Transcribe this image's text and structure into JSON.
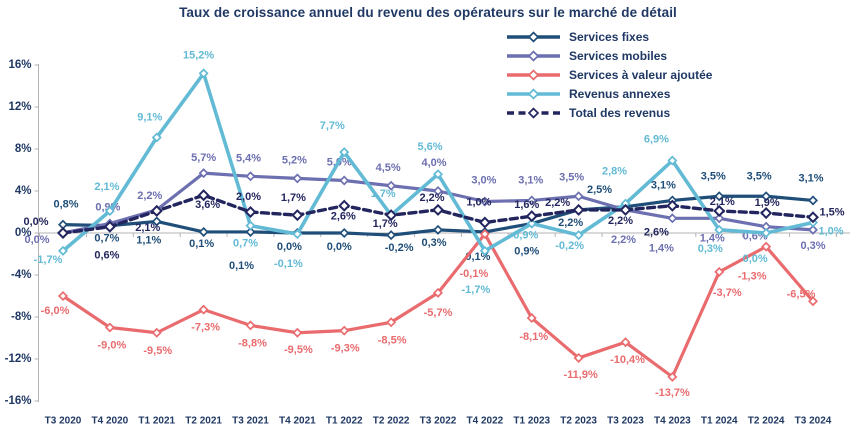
{
  "chart_data": {
    "type": "line",
    "title": "Taux de croissance annuel du revenu des opérateurs sur le marché de détail",
    "categories": [
      "T3 2020",
      "T4 2020",
      "T1 2021",
      "T2 2021",
      "T3 2021",
      "T4 2021",
      "T1 2022",
      "T2 2022",
      "T3 2022",
      "T4 2022",
      "T1 2023",
      "T2 2023",
      "T3 2023",
      "T4 2023",
      "T1 2024",
      "T2 2024",
      "T3 2024"
    ],
    "y_axis": {
      "min": -16,
      "max": 16,
      "step": 4,
      "tick_labels": [
        "16%",
        "12%",
        "8%",
        "4%",
        "0%",
        "-4%",
        "-8%",
        "-12%",
        "-16%"
      ]
    },
    "grid": false,
    "legend_position": "top-right",
    "colors": {
      "axis_text": "#1F3864",
      "axis_line": "#B3B3B3",
      "title": "#1F3864"
    },
    "series": [
      {
        "id": "services-fixes",
        "name": "Services fixes",
        "color": "#1F4E79",
        "dash": false,
        "values": [
          0.8,
          0.7,
          1.1,
          0.1,
          0.1,
          0.0,
          0.0,
          -0.2,
          0.3,
          0.1,
          0.9,
          2.2,
          2.5,
          3.1,
          3.5,
          3.5,
          3.1
        ],
        "labels": [
          "0,8%",
          "0,7%",
          "1,1%",
          "0,1%",
          "0,1%",
          "0,0%",
          "0,0%",
          "-0,2%",
          "0,3%",
          "0,1%",
          "0,9%",
          "2,2%",
          "2,5%",
          "3,1%",
          "3,5%",
          "3,5%",
          "3,1%"
        ],
        "label_offsets": [
          [
            3,
            -20
          ],
          [
            -3,
            13
          ],
          [
            -8,
            19
          ],
          [
            -2,
            12
          ],
          [
            -9,
            34
          ],
          [
            -8,
            14
          ],
          [
            -5,
            14
          ],
          [
            8,
            13
          ],
          [
            -4,
            13
          ],
          [
            -7,
            25
          ],
          [
            -5,
            28
          ],
          [
            -8,
            13
          ],
          [
            -26,
            -17
          ],
          [
            -9,
            -15
          ],
          [
            -6,
            -20
          ],
          [
            -7,
            -20
          ],
          [
            -2,
            -22
          ]
        ]
      },
      {
        "id": "services-mobiles",
        "name": "Services mobiles",
        "color": "#6C6FB0",
        "dash": false,
        "values": [
          0.0,
          0.9,
          2.2,
          5.7,
          5.4,
          5.2,
          5.0,
          4.5,
          4.0,
          3.0,
          3.1,
          3.5,
          2.2,
          1.4,
          1.4,
          0.6,
          0.3
        ],
        "labels": [
          "0,0%",
          "0,9%",
          "2,2%",
          "5,7%",
          "5,4%",
          "5,2%",
          "5,0%",
          "4,5%",
          "4,0%",
          "3,0%",
          "3,1%",
          "3,5%",
          "2,2%",
          "1,4%",
          "1,4%",
          "0,6%",
          "0,3%"
        ],
        "label_offsets": [
          [
            -26,
            7
          ],
          [
            -2,
            -16
          ],
          [
            -7,
            -14
          ],
          [
            0,
            -15
          ],
          [
            -2,
            -18
          ],
          [
            -3,
            -18
          ],
          [
            -5,
            -18
          ],
          [
            -3,
            -18
          ],
          [
            -4,
            -28
          ],
          [
            -1,
            -21
          ],
          [
            -1,
            -20
          ],
          [
            -7,
            -19
          ],
          [
            -2,
            30
          ],
          [
            -11,
            30
          ],
          [
            -7,
            20
          ],
          [
            -11,
            10
          ],
          [
            0,
            16
          ]
        ]
      },
      {
        "id": "services-valeur-ajoutee",
        "name": "Services à valeur ajoutée",
        "color": "#E96B6E",
        "dash": false,
        "values": [
          -6.0,
          -9.0,
          -9.5,
          -7.3,
          -8.8,
          -9.5,
          -9.3,
          -8.5,
          -5.7,
          -0.1,
          -8.1,
          -11.9,
          -10.4,
          -13.7,
          -3.7,
          -1.3,
          -6.5
        ],
        "labels": [
          "-6,0%",
          "-9,0%",
          "-9,5%",
          "-7,3%",
          "-8,8%",
          "-9,5%",
          "-9,3%",
          "-8,5%",
          "-5,7%",
          "-0,1%",
          "-8,1%",
          "-11,9%",
          "-10,4%",
          "-13,7%",
          "-3,7%",
          "-1,3%",
          "-6,5%"
        ],
        "label_offsets": [
          [
            -8,
            15
          ],
          [
            2,
            18
          ],
          [
            1,
            18
          ],
          [
            2,
            18
          ],
          [
            2,
            18
          ],
          [
            1,
            17
          ],
          [
            1,
            18
          ],
          [
            1,
            18
          ],
          [
            0,
            20
          ],
          [
            -11,
            40
          ],
          [
            2,
            19
          ],
          [
            2,
            17
          ],
          [
            2,
            18
          ],
          [
            0,
            16
          ],
          [
            8,
            21
          ],
          [
            -14,
            30
          ],
          [
            -12,
            -7
          ]
        ]
      },
      {
        "id": "revenus-annexes",
        "name": "Revenus annexes",
        "color": "#62BAD5",
        "dash": false,
        "values": [
          -1.7,
          2.1,
          9.1,
          15.2,
          0.7,
          -0.1,
          7.7,
          1.7,
          5.6,
          -1.7,
          0.9,
          -0.2,
          2.8,
          6.9,
          0.3,
          0.0,
          1.0
        ],
        "labels": [
          "-1,7%",
          "2,1%",
          "9,1%",
          "15,2%",
          "0,7%",
          "-0,1%",
          "7,7%",
          "1,7%",
          "5,6%",
          "-1,7%",
          "0,9%",
          "-0,2%",
          "2,8%",
          "6,9%",
          "0,3%",
          "0,0%",
          "1,0%"
        ],
        "label_offsets": [
          [
            -15,
            9
          ],
          [
            -3,
            -24
          ],
          [
            -7,
            -20
          ],
          [
            -5,
            -18
          ],
          [
            -5,
            18
          ],
          [
            -9,
            30
          ],
          [
            -12,
            -26
          ],
          [
            -8,
            -21
          ],
          [
            -8,
            -27
          ],
          [
            -9,
            39
          ],
          [
            -6,
            12
          ],
          [
            -9,
            11
          ],
          [
            -11,
            -32
          ],
          [
            -16,
            -21
          ],
          [
            -9,
            19
          ],
          [
            -11,
            26
          ],
          [
            18,
            9
          ]
        ]
      },
      {
        "id": "total-des-revenus",
        "name": "Total des revenus",
        "color": "#23265E",
        "dash": true,
        "values": [
          0.0,
          0.6,
          2.1,
          3.6,
          2.0,
          1.7,
          2.6,
          1.7,
          2.2,
          1.0,
          1.6,
          2.2,
          2.2,
          2.6,
          2.1,
          1.9,
          1.5
        ],
        "labels": [
          "0,0%",
          "0,6%",
          "2,1%",
          "3,6%",
          "2,0%",
          "1,7%",
          "2,6%",
          "1,7%",
          "2,2%",
          "1,0%",
          "1,6%",
          "2,2%",
          "2,2%",
          "2,6%",
          "2,1%",
          "1,9%",
          "1,5%"
        ],
        "label_offsets": [
          [
            -27,
            -11
          ],
          [
            -3,
            29
          ],
          [
            -9,
            17
          ],
          [
            4,
            10
          ],
          [
            -2,
            -15
          ],
          [
            -4,
            -17
          ],
          [
            -1,
            11
          ],
          [
            -6,
            9
          ],
          [
            -6,
            -12
          ],
          [
            -6,
            -20
          ],
          [
            -5,
            -11
          ],
          [
            -21,
            -7
          ],
          [
            -5,
            11
          ],
          [
            -16,
            27
          ],
          [
            3,
            -9
          ],
          [
            1,
            -10
          ],
          [
            19,
            -5
          ]
        ]
      }
    ]
  }
}
